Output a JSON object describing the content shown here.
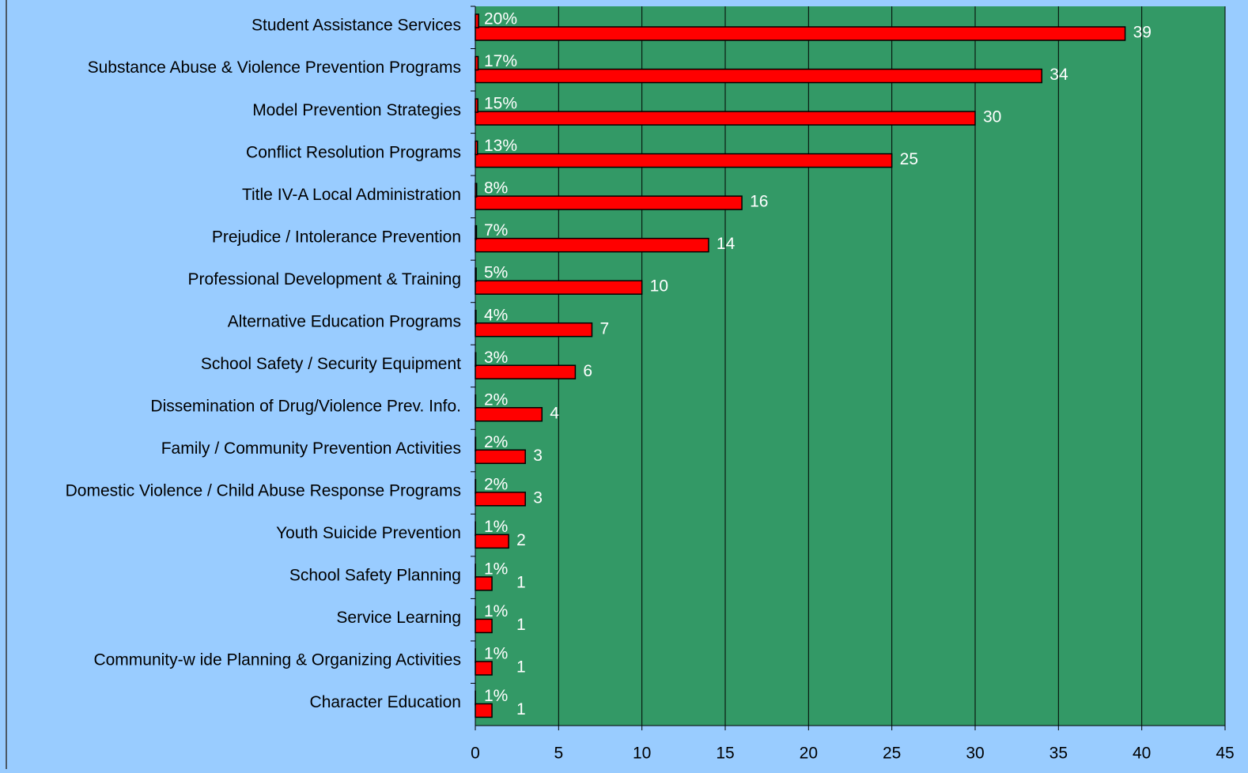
{
  "chart_data": {
    "type": "bar",
    "orientation": "horizontal",
    "categories": [
      "Student Assistance Services",
      "Substance Abuse & Violence Prevention Programs",
      "Model Prevention Strategies",
      "Conflict Resolution Programs",
      "Title IV-A Local Administration",
      "Prejudice / Intolerance Prevention",
      "Professional Development & Training",
      "Alternative Education Programs",
      "School Safety / Security Equipment",
      "Dissemination of Drug/Violence Prev. Info.",
      "Family / Community Prevention Activities",
      "Domestic Violence / Child Abuse Response Programs",
      "Youth Suicide Prevention",
      "School Safety Planning",
      "Service Learning",
      "Community-w ide Planning & Organizing Activities",
      "Character Education"
    ],
    "series": [
      {
        "color": "#ff0000",
        "values": [
          39,
          34,
          30,
          25,
          16,
          14,
          10,
          7,
          6,
          4,
          3,
          3,
          2,
          1,
          1,
          1,
          1
        ]
      },
      {
        "color": "#ff0000",
        "values": [
          0.2,
          0.17,
          0.15,
          0.13,
          0.08,
          0.07,
          0.05,
          0.04,
          0.03,
          0.02,
          0.02,
          0.02,
          0.01,
          0.01,
          0.01,
          0.01,
          0.01
        ],
        "value_labels": [
          "20%",
          "17%",
          "15%",
          "13%",
          "8%",
          "7%",
          "5%",
          "4%",
          "3%",
          "2%",
          "2%",
          "2%",
          "1%",
          "1%",
          "1%",
          "1%",
          "1%"
        ]
      }
    ],
    "xlim": [
      0,
      45
    ],
    "xticks": [
      0,
      5,
      10,
      15,
      20,
      25,
      30,
      35,
      40,
      45
    ],
    "grid": true
  }
}
